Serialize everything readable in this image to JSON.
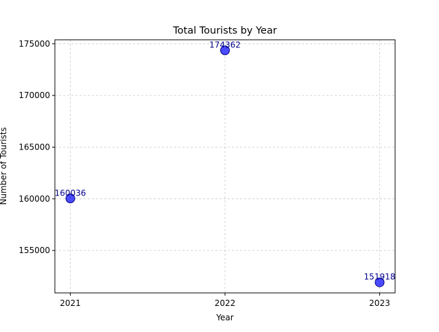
{
  "chart_data": {
    "type": "scatter",
    "title": "Total Tourists by Year",
    "xlabel": "Year",
    "ylabel": "Number of Tourists",
    "x": [
      "2021",
      "2022",
      "2023"
    ],
    "y": [
      160036,
      174362,
      151918
    ],
    "data_labels": [
      "160036",
      "174362",
      "151918"
    ],
    "x_ticks": [
      "2021",
      "2022",
      "2023"
    ],
    "y_ticks": [
      155000,
      160000,
      165000,
      170000,
      175000
    ],
    "y_tick_labels": [
      "155000",
      "160000",
      "165000",
      "170000",
      "175000"
    ],
    "xlim": [
      2020.9,
      2023.1
    ],
    "ylim": [
      150895,
      175385
    ],
    "grid": true,
    "grid_style": "dashed",
    "marker_color": "#0000ff",
    "marker_edge_color": "#000080",
    "label_color": "#00008b"
  }
}
